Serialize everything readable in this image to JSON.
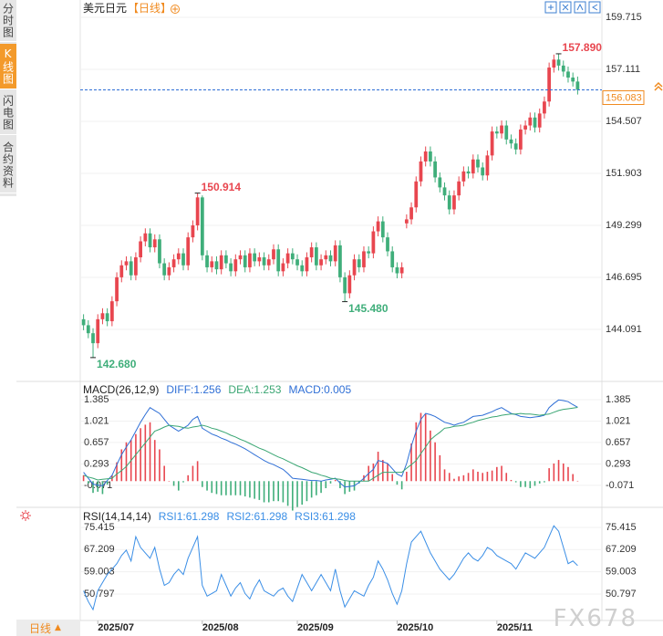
{
  "sidebar": {
    "tabs": [
      "分时图",
      "K线图",
      "闪电图",
      "合约资料"
    ],
    "active": 1
  },
  "footer": {
    "period": "日线"
  },
  "watermark": "FX678",
  "chart_data": [
    {
      "type": "candlestick",
      "title": "美元日元",
      "subtitle": "【日线】",
      "up_color": "#e8464f",
      "down_color": "#3fae7a",
      "xlim": [
        -0.5,
        104.5
      ],
      "ylim": [
        141.487,
        160.126
      ],
      "yticks": [
        144.091,
        146.695,
        149.299,
        151.903,
        154.507,
        157.111,
        159.715
      ],
      "grid": true,
      "last_price": 156.083,
      "last_price_color": "#f08a1f",
      "last_line_color": "#2f6fd6",
      "high_labels": {
        "24": "150.914",
        "100": "157.890"
      },
      "low_labels": {
        "2": "142.680",
        "55": "145.480"
      },
      "open": [
        144.6,
        144.3,
        143.9,
        143.4,
        144.6,
        144.9,
        144.5,
        145.5,
        146.7,
        147.3,
        147.5,
        146.8,
        147.7,
        148.5,
        148.9,
        148.2,
        148.6,
        147.4,
        146.8,
        147.2,
        147.6,
        147.9,
        147.3,
        148.7,
        149.3,
        150.7,
        147.8,
        147.2,
        147.5,
        147.1,
        147.8,
        147.4,
        147.0,
        147.6,
        147.8,
        147.2,
        147.9,
        147.5,
        147.7,
        147.3,
        147.6,
        148.1,
        147.0,
        147.4,
        147.9,
        147.6,
        147.3,
        147.0,
        147.7,
        148.2,
        147.3,
        147.6,
        147.8,
        147.5,
        148.3,
        146.7,
        145.9,
        146.8,
        147.6,
        147.2,
        148.0,
        147.9,
        149.0,
        149.5,
        148.7,
        148.0,
        147.2,
        146.9,
        149.4,
        149.6,
        150.2,
        151.5,
        152.5,
        153.0,
        152.5,
        151.7,
        151.2,
        150.8,
        150.1,
        150.8,
        151.5,
        152.0,
        151.9,
        152.6,
        152.2,
        151.8,
        152.8,
        154.0,
        153.9,
        154.3,
        153.6,
        153.4,
        153.1,
        154.1,
        154.3,
        154.7,
        154.2,
        154.9,
        155.5,
        157.2,
        157.6,
        157.3,
        157.0,
        156.7,
        156.5
      ],
      "high": [
        144.85,
        144.55,
        144.15,
        144.85,
        145.15,
        145.15,
        145.75,
        146.95,
        147.55,
        147.75,
        147.75,
        147.95,
        148.75,
        149.15,
        149.15,
        148.85,
        148.85,
        147.65,
        147.45,
        147.85,
        148.15,
        148.15,
        148.95,
        149.55,
        150.914,
        150.8,
        148.05,
        147.75,
        147.75,
        148.05,
        148.05,
        147.65,
        147.85,
        148.05,
        148.05,
        148.15,
        148.15,
        147.95,
        147.95,
        147.85,
        148.35,
        148.35,
        147.65,
        148.15,
        148.15,
        147.85,
        147.55,
        147.95,
        148.45,
        148.45,
        147.85,
        148.05,
        148.05,
        148.55,
        148.55,
        146.95,
        147.05,
        147.85,
        147.85,
        148.25,
        148.25,
        149.25,
        149.75,
        149.75,
        148.95,
        148.25,
        147.45,
        147.45,
        149.85,
        150.45,
        151.75,
        152.75,
        153.25,
        153.25,
        152.75,
        151.95,
        151.45,
        151.05,
        151.05,
        151.75,
        152.25,
        152.25,
        152.85,
        152.85,
        152.45,
        153.05,
        154.25,
        154.25,
        154.55,
        154.55,
        153.85,
        153.65,
        154.35,
        154.55,
        154.95,
        154.95,
        155.15,
        155.75,
        157.45,
        157.85,
        157.89,
        157.55,
        157.25,
        156.95,
        156.75
      ],
      "low": [
        144.05,
        143.65,
        142.68,
        143.15,
        144.35,
        144.25,
        144.25,
        145.25,
        146.45,
        147.05,
        146.55,
        146.55,
        147.45,
        148.25,
        147.95,
        147.95,
        147.15,
        146.55,
        146.55,
        146.95,
        147.35,
        147.05,
        147.05,
        148.45,
        149.05,
        147.55,
        146.95,
        146.95,
        146.85,
        146.85,
        147.15,
        146.75,
        146.75,
        147.35,
        146.95,
        146.95,
        147.25,
        147.25,
        147.05,
        147.05,
        147.35,
        146.75,
        146.75,
        147.15,
        147.35,
        147.05,
        146.75,
        146.75,
        147.45,
        147.05,
        147.05,
        147.35,
        147.25,
        147.25,
        146.45,
        145.48,
        145.65,
        146.55,
        146.95,
        146.95,
        147.65,
        147.65,
        148.75,
        148.45,
        147.75,
        146.95,
        146.65,
        146.65,
        149.15,
        149.35,
        149.95,
        151.25,
        152.25,
        152.25,
        151.45,
        150.95,
        150.55,
        149.85,
        149.85,
        150.55,
        151.25,
        151.65,
        151.65,
        151.95,
        151.55,
        151.55,
        152.55,
        153.65,
        153.65,
        153.35,
        153.15,
        152.85,
        152.85,
        153.85,
        154.05,
        153.95,
        153.95,
        154.65,
        155.25,
        156.95,
        157.05,
        156.75,
        156.45,
        156.25,
        155.85
      ],
      "close": [
        144.3,
        143.9,
        143.4,
        144.6,
        144.9,
        144.5,
        145.5,
        146.7,
        147.3,
        147.5,
        146.8,
        147.7,
        148.5,
        148.9,
        148.2,
        148.6,
        147.4,
        146.8,
        147.2,
        147.6,
        147.9,
        147.3,
        148.7,
        149.3,
        150.7,
        147.8,
        147.2,
        147.5,
        147.1,
        147.8,
        147.4,
        147.0,
        147.6,
        147.8,
        147.2,
        147.9,
        147.5,
        147.7,
        147.3,
        147.6,
        148.1,
        147.0,
        147.4,
        147.9,
        147.6,
        147.3,
        147.0,
        147.7,
        148.2,
        147.3,
        147.6,
        147.8,
        147.5,
        148.3,
        146.7,
        145.9,
        146.8,
        147.6,
        147.2,
        148.0,
        147.9,
        149.0,
        149.5,
        148.7,
        148.0,
        147.2,
        146.9,
        147.2,
        149.6,
        150.2,
        151.5,
        152.5,
        153.0,
        152.5,
        151.7,
        151.2,
        150.8,
        150.1,
        150.8,
        151.5,
        152.0,
        151.9,
        152.6,
        152.2,
        151.8,
        152.8,
        154.0,
        153.9,
        154.3,
        153.6,
        153.4,
        153.1,
        154.1,
        154.3,
        154.7,
        154.2,
        154.9,
        155.5,
        157.2,
        157.6,
        157.3,
        157.0,
        156.7,
        156.5,
        156.083
      ]
    },
    {
      "type": "macd",
      "title": "MACD(26,12,9)",
      "xlim": [
        -0.5,
        104.5
      ],
      "ylim": [
        -0.43,
        1.633
      ],
      "yticks": [
        -0.071,
        0.293,
        0.657,
        1.021,
        1.385
      ],
      "grid": true,
      "series": [
        {
          "name": "DIFF:1.256",
          "color": "#2f6fd6",
          "values": [
            0.15,
            0.05,
            -0.05,
            -0.07,
            -0.08,
            0.01,
            0.1,
            0.28,
            0.45,
            0.58,
            0.7,
            0.85,
            1.0,
            1.13,
            1.25,
            1.2,
            1.15,
            1.05,
            0.95,
            0.9,
            0.85,
            0.9,
            0.95,
            1.05,
            1.1,
            0.9,
            0.85,
            0.8,
            0.77,
            0.73,
            0.7,
            0.66,
            0.63,
            0.59,
            0.55,
            0.5,
            0.45,
            0.4,
            0.35,
            0.31,
            0.28,
            0.24,
            0.2,
            0.13,
            0.05,
            0.04,
            0.03,
            0.02,
            0.01,
            0.01,
            0.0,
            0.02,
            0.03,
            0.05,
            -0.03,
            -0.1,
            -0.09,
            -0.08,
            -0.02,
            0.05,
            0.13,
            0.2,
            0.35,
            0.33,
            0.3,
            0.21,
            0.12,
            0.08,
            0.3,
            0.6,
            0.85,
            1.05,
            1.15,
            1.13,
            1.1,
            1.05,
            1.0,
            0.98,
            0.95,
            0.98,
            1.0,
            1.05,
            1.1,
            1.11,
            1.12,
            1.15,
            1.18,
            1.22,
            1.25,
            1.2,
            1.15,
            1.13,
            1.1,
            1.09,
            1.08,
            1.09,
            1.1,
            1.12,
            1.25,
            1.32,
            1.38,
            1.37,
            1.35,
            1.3,
            1.256
          ]
        },
        {
          "name": "DEA:1.253",
          "color": "#3aa673",
          "values": [
            0.1,
            0.07,
            0.05,
            0.02,
            0.03,
            0.04,
            0.05,
            0.12,
            0.18,
            0.25,
            0.35,
            0.45,
            0.55,
            0.65,
            0.75,
            0.85,
            0.88,
            0.92,
            0.95,
            0.94,
            0.93,
            0.91,
            0.9,
            0.92,
            0.93,
            0.95,
            0.93,
            0.9,
            0.88,
            0.85,
            0.82,
            0.78,
            0.75,
            0.71,
            0.68,
            0.64,
            0.6,
            0.56,
            0.53,
            0.49,
            0.45,
            0.41,
            0.38,
            0.34,
            0.3,
            0.26,
            0.23,
            0.19,
            0.15,
            0.13,
            0.1,
            0.08,
            0.05,
            0.04,
            0.03,
            0.01,
            0.0,
            0.0,
            0.0,
            0.0,
            0.0,
            0.05,
            0.1,
            0.15,
            0.15,
            0.15,
            0.15,
            0.15,
            0.22,
            0.28,
            0.35,
            0.47,
            0.58,
            0.7,
            0.77,
            0.83,
            0.9,
            0.91,
            0.93,
            0.94,
            0.95,
            0.98,
            1.0,
            1.03,
            1.05,
            1.07,
            1.09,
            1.1,
            1.12,
            1.13,
            1.14,
            1.14,
            1.15,
            1.14,
            1.14,
            1.13,
            1.12,
            1.13,
            1.14,
            1.17,
            1.2,
            1.22,
            1.23,
            1.24,
            1.253
          ]
        },
        {
          "name": "MACD:0.005",
          "color": "#2f6fd6",
          "up_color": "#e8464f",
          "down_color": "#3fae7a",
          "values": [
            0.1,
            -0.04,
            -0.2,
            -0.18,
            -0.22,
            -0.06,
            0.1,
            0.32,
            0.54,
            0.66,
            0.7,
            0.8,
            0.9,
            0.96,
            1.0,
            0.7,
            0.54,
            0.26,
            0.0,
            -0.08,
            -0.16,
            -0.02,
            0.1,
            0.26,
            0.34,
            -0.1,
            -0.16,
            -0.2,
            -0.22,
            -0.24,
            -0.24,
            -0.24,
            -0.24,
            -0.24,
            -0.26,
            -0.28,
            -0.3,
            -0.32,
            -0.36,
            -0.36,
            -0.34,
            -0.34,
            -0.36,
            -0.42,
            -0.5,
            -0.44,
            -0.4,
            -0.34,
            -0.28,
            -0.24,
            -0.2,
            -0.12,
            -0.04,
            0.02,
            -0.12,
            -0.22,
            -0.18,
            -0.16,
            -0.04,
            0.1,
            0.26,
            0.3,
            0.5,
            0.36,
            0.3,
            0.12,
            -0.06,
            -0.14,
            0.16,
            0.64,
            1.0,
            1.16,
            1.14,
            0.86,
            0.66,
            0.44,
            0.2,
            0.14,
            0.04,
            0.08,
            0.1,
            0.14,
            0.2,
            0.16,
            0.14,
            0.16,
            0.18,
            0.24,
            0.26,
            0.14,
            0.02,
            -0.02,
            -0.1,
            -0.1,
            -0.12,
            -0.08,
            -0.04,
            -0.02,
            0.22,
            0.3,
            0.36,
            0.3,
            0.24,
            0.12,
            0.005
          ]
        }
      ]
    },
    {
      "type": "line",
      "title": "RSI(14,14,14)",
      "xlim": [
        -0.5,
        104.5
      ],
      "ylim": [
        41.0,
        80.8
      ],
      "yticks": [
        50.797,
        59.003,
        67.209,
        75.415
      ],
      "grid": true,
      "xticks": [
        {
          "value": 3,
          "label": "2025/07"
        },
        {
          "value": 25,
          "label": "2025/08"
        },
        {
          "value": 45,
          "label": "2025/09"
        },
        {
          "value": 66,
          "label": "2025/10"
        },
        {
          "value": 87,
          "label": "2025/11"
        }
      ],
      "series": [
        {
          "name": "RSI1:61.298",
          "color": "#3a8ee6",
          "values": [
            52,
            48,
            45,
            52,
            55,
            58,
            60,
            62,
            65,
            67,
            63,
            72,
            68,
            66,
            64,
            68,
            60,
            54,
            55,
            58,
            60,
            58,
            64,
            68,
            72,
            54,
            50,
            51,
            52,
            58,
            54,
            50,
            53,
            55,
            51,
            49,
            53,
            56,
            52,
            51,
            50,
            52,
            53,
            50,
            48,
            53,
            58,
            55,
            52,
            55,
            58,
            55,
            52,
            60,
            52,
            46,
            49,
            52,
            51,
            50,
            54,
            57,
            63,
            60,
            56,
            51,
            47,
            52,
            62,
            70,
            72,
            74,
            70,
            66,
            63,
            60,
            58,
            56,
            58,
            61,
            64,
            66,
            64,
            63,
            65,
            68,
            67,
            65,
            64,
            63,
            62,
            60,
            63,
            66,
            65,
            64,
            66,
            68,
            72,
            76,
            74,
            68,
            62,
            63,
            61.298
          ]
        }
      ],
      "extra_legend": [
        {
          "name": "RSI2:61.298",
          "color": "#3a8ee6"
        },
        {
          "name": "RSI3:61.298",
          "color": "#3a8ee6"
        }
      ]
    }
  ]
}
